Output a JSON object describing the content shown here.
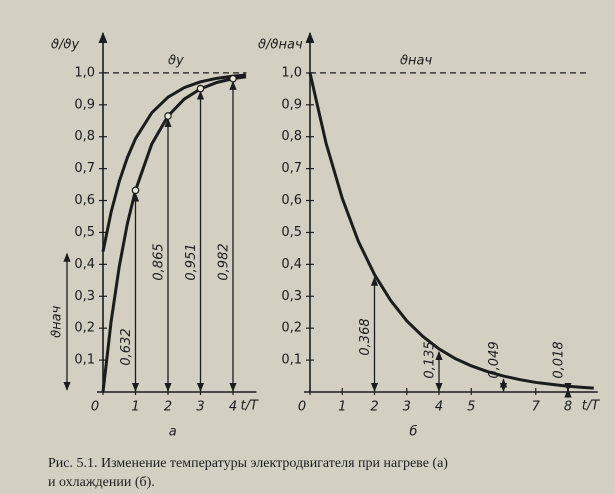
{
  "charts": [
    {
      "chart_data": {
        "type": "line",
        "ylabel": "ϑ/ϑу",
        "xlabel": "t/T",
        "panel_label": "а",
        "xlim": [
          0,
          4.6
        ],
        "ylim": [
          0,
          1.1
        ],
        "xticks": [
          0,
          1,
          2,
          3,
          4
        ],
        "yticks": [
          {
            "value": 0.1,
            "label": "0,1"
          },
          {
            "value": 0.2,
            "label": "0,2"
          },
          {
            "value": 0.3,
            "label": "0,3"
          },
          {
            "value": 0.4,
            "label": "0,4"
          },
          {
            "value": 0.5,
            "label": "0,5"
          },
          {
            "value": 0.6,
            "label": "0,6"
          },
          {
            "value": 0.7,
            "label": "0,7"
          },
          {
            "value": 0.8,
            "label": "0,8"
          },
          {
            "value": 0.9,
            "label": "0,9"
          },
          {
            "value": 1.0,
            "label": "1,0"
          }
        ],
        "reference_line": {
          "value": 1.0,
          "label": "ϑу"
        },
        "initial_label": "ϑнач",
        "color": "#1c1c1c",
        "series": [
          {
            "x": [
              0,
              0.25,
              0.5,
              0.75,
              1,
              1.5,
              2,
              2.5,
              3,
              3.5,
              4,
              4.4
            ],
            "values": [
              0,
              0.221,
              0.393,
              0.528,
              0.632,
              0.777,
              0.865,
              0.918,
              0.95,
              0.97,
              0.982,
              0.988
            ]
          },
          {
            "x": [
              0,
              0.25,
              0.5,
              0.75,
              1,
              1.5,
              2,
              2.5,
              3,
              3.5,
              4,
              4.4
            ],
            "values": [
              0.44,
              0.564,
              0.66,
              0.735,
              0.794,
              0.875,
              0.924,
              0.954,
              0.972,
              0.983,
              0.99,
              0.993
            ]
          }
        ],
        "annotations": [
          {
            "x": 1,
            "value": 0.632,
            "label": "0,632"
          },
          {
            "x": 2,
            "value": 0.865,
            "label": "0,865"
          },
          {
            "x": 3,
            "value": 0.951,
            "label": "0,951"
          },
          {
            "x": 4,
            "value": 0.982,
            "label": "0,982"
          }
        ]
      }
    },
    {
      "chart_data": {
        "type": "line",
        "ylabel": "ϑ/ϑнач",
        "xlabel": "t/T",
        "panel_label": "б",
        "xlim": [
          0,
          8.8
        ],
        "ylim": [
          0,
          1.1
        ],
        "xticks": [
          0,
          1,
          2,
          3,
          4,
          5,
          7,
          8
        ],
        "yticks": [
          {
            "value": 0.1,
            "label": "0,1"
          },
          {
            "value": 0.2,
            "label": "0,2"
          },
          {
            "value": 0.3,
            "label": "0,3"
          },
          {
            "value": 0.4,
            "label": "0,4"
          },
          {
            "value": 0.5,
            "label": "0,5"
          },
          {
            "value": 0.6,
            "label": "0,6"
          },
          {
            "value": 0.7,
            "label": "0,7"
          },
          {
            "value": 0.8,
            "label": "0,8"
          },
          {
            "value": 0.9,
            "label": "0,9"
          },
          {
            "value": 1.0,
            "label": "1,0"
          }
        ],
        "reference_line": {
          "value": 1.0,
          "label": "ϑнач"
        },
        "color": "#1c1c1c",
        "series": [
          {
            "x": [
              0,
              0.5,
              1,
              1.5,
              2,
              2.5,
              3,
              3.5,
              4,
              4.5,
              5,
              5.5,
              6,
              6.5,
              7,
              7.5,
              8,
              8.5,
              8.8
            ],
            "values": [
              1,
              0.779,
              0.607,
              0.472,
              0.368,
              0.287,
              0.223,
              0.174,
              0.135,
              0.105,
              0.082,
              0.064,
              0.05,
              0.039,
              0.03,
              0.024,
              0.018,
              0.014,
              0.012
            ]
          }
        ],
        "annotations": [
          {
            "x": 2,
            "value": 0.368,
            "label": "0,368"
          },
          {
            "x": 4,
            "value": 0.135,
            "label": "0,135"
          },
          {
            "x": 6,
            "value": 0.049,
            "label": "0,049"
          },
          {
            "x": 8,
            "value": 0.018,
            "label": "0,018"
          }
        ]
      }
    }
  ],
  "caption": {
    "line1": "Рис. 5.1. Изменение температуры электродвигателя при нагреве (а)",
    "line2": "и охлаждении (б)."
  }
}
